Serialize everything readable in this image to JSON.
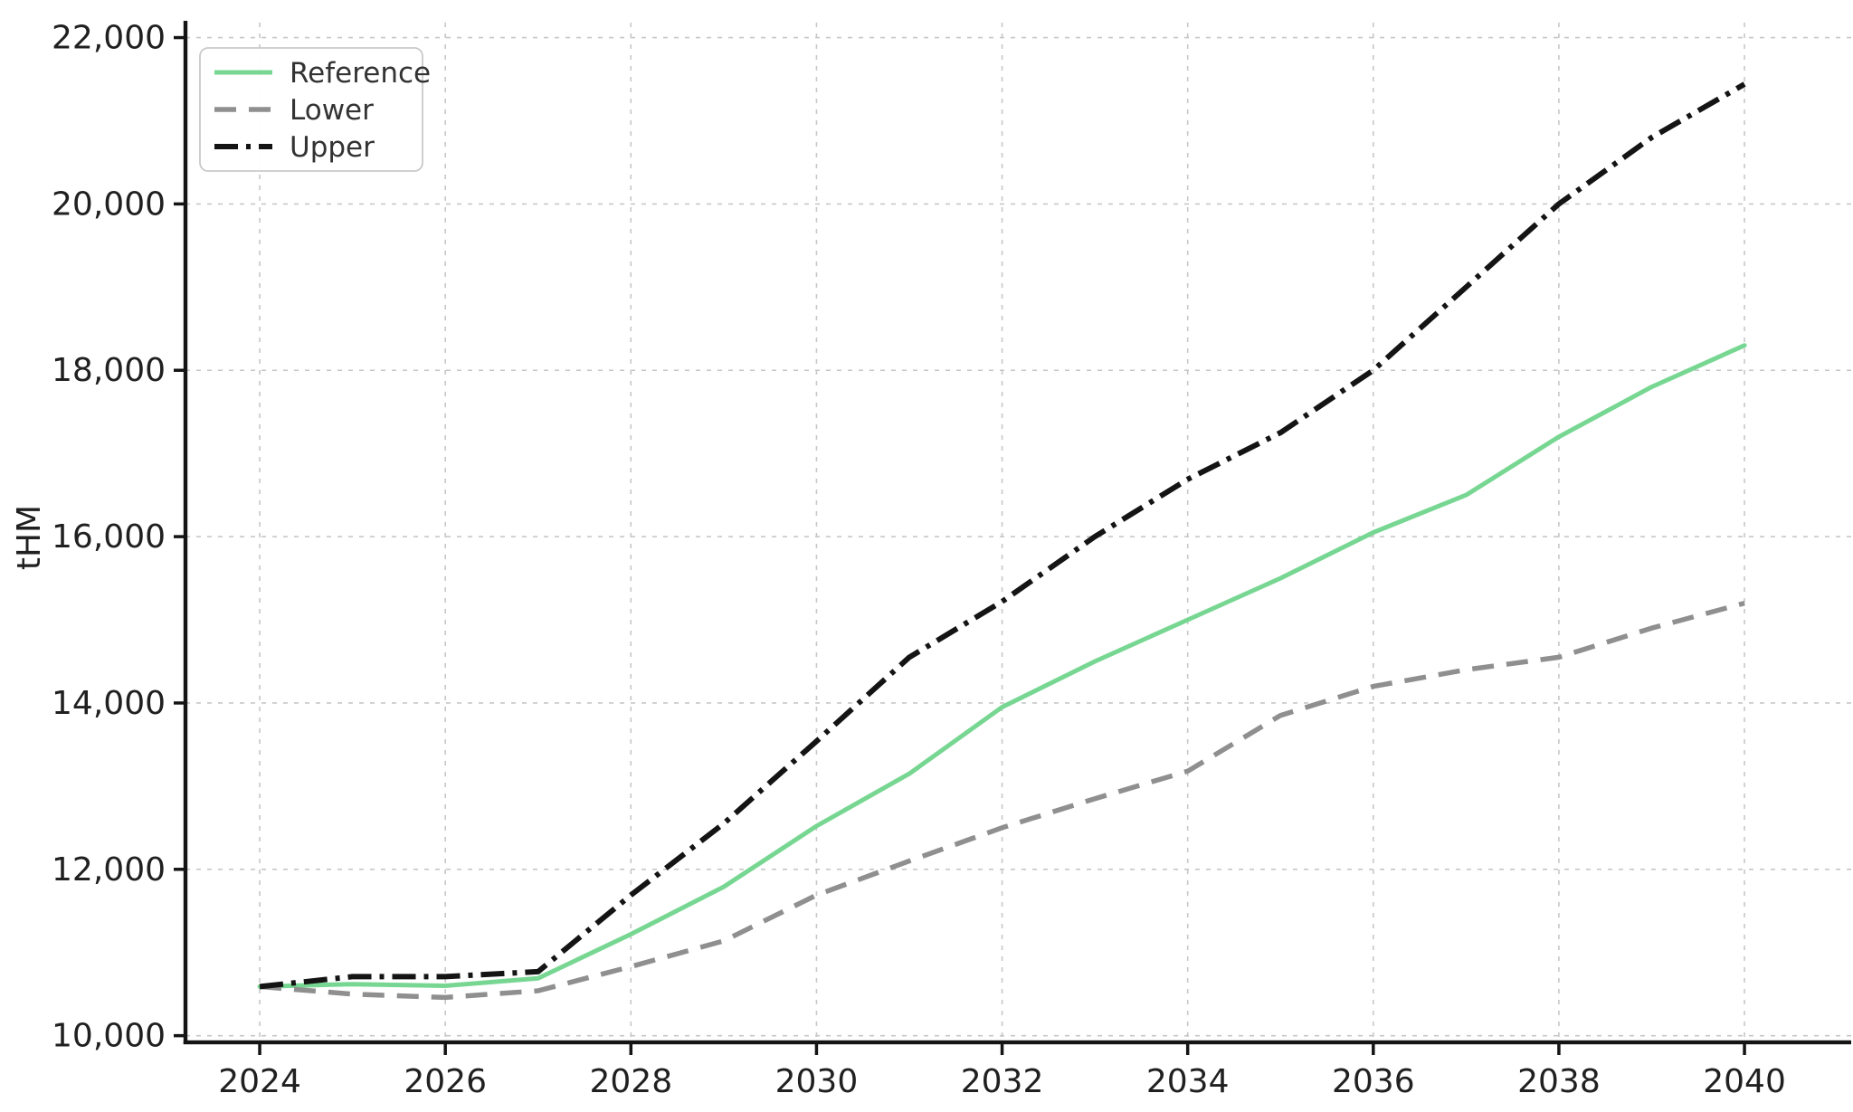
{
  "chart_data": {
    "type": "line",
    "title": "",
    "xlabel": "",
    "ylabel": "tHM",
    "x": [
      2024,
      2025,
      2026,
      2027,
      2028,
      2029,
      2030,
      2031,
      2032,
      2033,
      2034,
      2035,
      2036,
      2037,
      2038,
      2039,
      2040
    ],
    "series": [
      {
        "name": "Reference",
        "color": "#77d792",
        "style": "solid",
        "line_width": 5,
        "values": [
          10590,
          10620,
          10600,
          10690,
          11220,
          11790,
          12520,
          13150,
          13950,
          14500,
          15000,
          15500,
          16050,
          16500,
          17200,
          17800,
          18300
        ]
      },
      {
        "name": "Lower",
        "color": "#8f8f8f",
        "style": "dashed",
        "line_width": 5.5,
        "values": [
          10590,
          10500,
          10460,
          10540,
          10830,
          11140,
          11690,
          12100,
          12500,
          12850,
          13180,
          13850,
          14200,
          14400,
          14550,
          14900,
          15200
        ]
      },
      {
        "name": "Upper",
        "color": "#141414",
        "style": "dashdot",
        "line_width": 6,
        "values": [
          10590,
          10710,
          10710,
          10770,
          11690,
          12550,
          13540,
          14550,
          15220,
          16000,
          16690,
          17250,
          18000,
          19000,
          20000,
          20800,
          21440
        ]
      }
    ],
    "xticks": [
      2024,
      2026,
      2028,
      2030,
      2032,
      2034,
      2036,
      2038,
      2040
    ],
    "xtick_labels": [
      "2024",
      "2026",
      "2028",
      "2030",
      "2032",
      "2034",
      "2036",
      "2038",
      "2040"
    ],
    "yticks": [
      10000,
      12000,
      14000,
      16000,
      18000,
      20000,
      22000
    ],
    "ytick_labels": [
      "10,000",
      "12,000",
      "14,000",
      "16,000",
      "18,000",
      "20,000",
      "22,000"
    ],
    "xlim": [
      2023.2,
      2041.15
    ],
    "ylim": [
      9920,
      22180
    ],
    "grid": true,
    "legend_position": "upper left",
    "colors": {
      "grid": "#c7c7c7",
      "spine": "#141414",
      "tick_text": "#202020",
      "legend_border": "#c9c9c9",
      "legend_bg": "#ffffff",
      "legend_text": "#333333"
    }
  },
  "legend": {
    "items": [
      "Reference",
      "Lower",
      "Upper"
    ]
  }
}
